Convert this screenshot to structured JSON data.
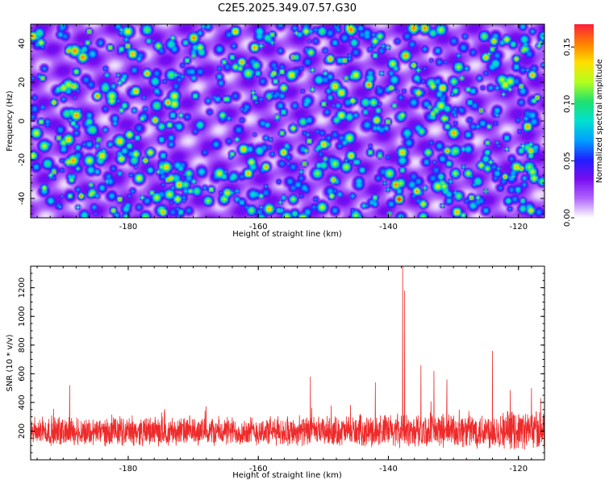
{
  "title": "C2E5.2025.349.07.57.G30",
  "colors": {
    "snr_line": "#ee2a2a",
    "axis": "#000000",
    "colormap": [
      "#ffffff",
      "#b066ff",
      "#7a0cf0",
      "#2020ff",
      "#00a0ff",
      "#00e0d0",
      "#20e070",
      "#b0ff20",
      "#ffe000",
      "#ff8000",
      "#ff1e3c"
    ]
  },
  "chart_data": [
    {
      "type": "heatmap",
      "xlabel": "Height of straight line (km)",
      "ylabel": "Frequency (Hz)",
      "xlim": [
        -195,
        -116
      ],
      "ylim": [
        -50,
        50
      ],
      "xticks": [
        -180,
        -160,
        -140,
        -120
      ],
      "yticks": [
        -40,
        -20,
        0,
        20,
        40
      ],
      "colorbar": {
        "label": "Normalized spectral amplitude",
        "range": [
          0,
          0.17
        ],
        "ticks": [
          "0.00",
          "0.05",
          "0.10",
          "0.15"
        ]
      },
      "notable_peaks": [
        {
          "x": -138.5,
          "y": -40,
          "value": 0.16
        },
        {
          "x": -135,
          "y": -5,
          "value": 0.09
        },
        {
          "x": -134,
          "y": -16,
          "value": 0.1
        },
        {
          "x": -152,
          "y": 36,
          "value": 0.1
        }
      ]
    },
    {
      "type": "line",
      "xlabel": "Height of straight line (km)",
      "ylabel": "SNR (10 * v/v)",
      "xlim": [
        -195,
        -116
      ],
      "ylim": [
        0,
        1350
      ],
      "xticks": [
        -180,
        -160,
        -140,
        -120
      ],
      "yticks": [
        200,
        400,
        600,
        800,
        1000,
        1200
      ],
      "series": [
        {
          "name": "SNR",
          "baseline": 170,
          "noise_amplitude": 190,
          "spikes": [
            {
              "x": -137.8,
              "value": 1350
            },
            {
              "x": -137.5,
              "value": 1180
            },
            {
              "x": -124,
              "value": 760
            },
            {
              "x": -135,
              "value": 660
            },
            {
              "x": -133,
              "value": 620
            },
            {
              "x": -189,
              "value": 520
            },
            {
              "x": -152,
              "value": 580
            },
            {
              "x": -131,
              "value": 560
            },
            {
              "x": -142,
              "value": 540
            },
            {
              "x": -118,
              "value": 500
            }
          ]
        }
      ]
    }
  ]
}
